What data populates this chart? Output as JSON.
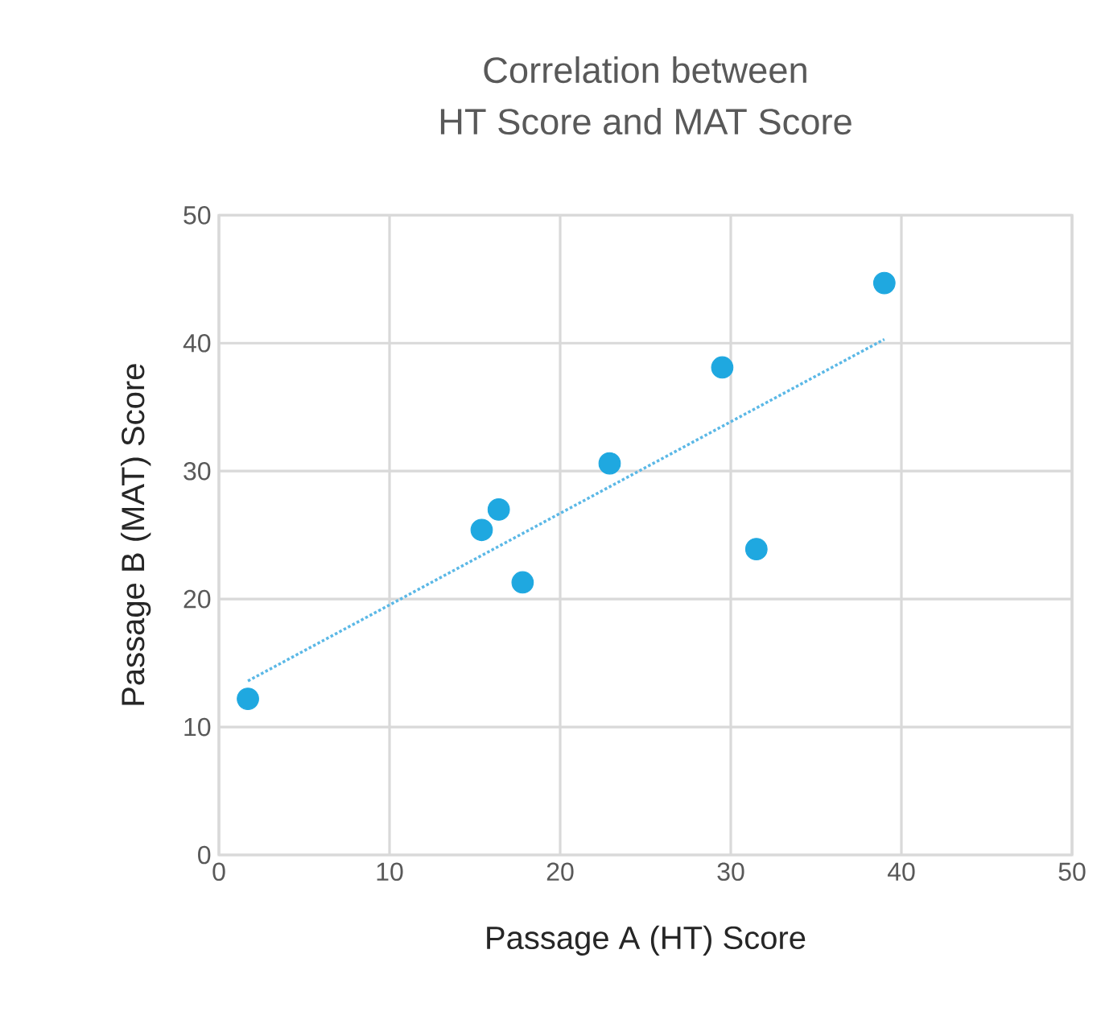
{
  "chart_data": {
    "type": "scatter",
    "title": "Correlation between\nHT Score and MAT Score",
    "xlabel": "Passage A (HT) Score",
    "ylabel": "Passage B (MAT) Score",
    "xlim": [
      0,
      50
    ],
    "ylim": [
      0,
      50
    ],
    "xticks": [
      0,
      10,
      20,
      30,
      40,
      50
    ],
    "yticks": [
      0,
      10,
      20,
      30,
      40,
      50
    ],
    "grid": true,
    "series": [
      {
        "color": "#1fa8e0",
        "marker": "circle",
        "x": [
          1.7,
          15.4,
          16.4,
          17.8,
          22.9,
          29.5,
          31.5,
          39.0
        ],
        "values": [
          12.2,
          25.4,
          27.0,
          21.3,
          30.6,
          38.1,
          23.9,
          44.7
        ]
      },
      {
        "type": "line",
        "marker": "none",
        "color": "#5bb8e6",
        "line_style": "dotted",
        "x": [
          1.7,
          39.0
        ],
        "values": [
          13.6,
          40.3
        ]
      }
    ]
  }
}
